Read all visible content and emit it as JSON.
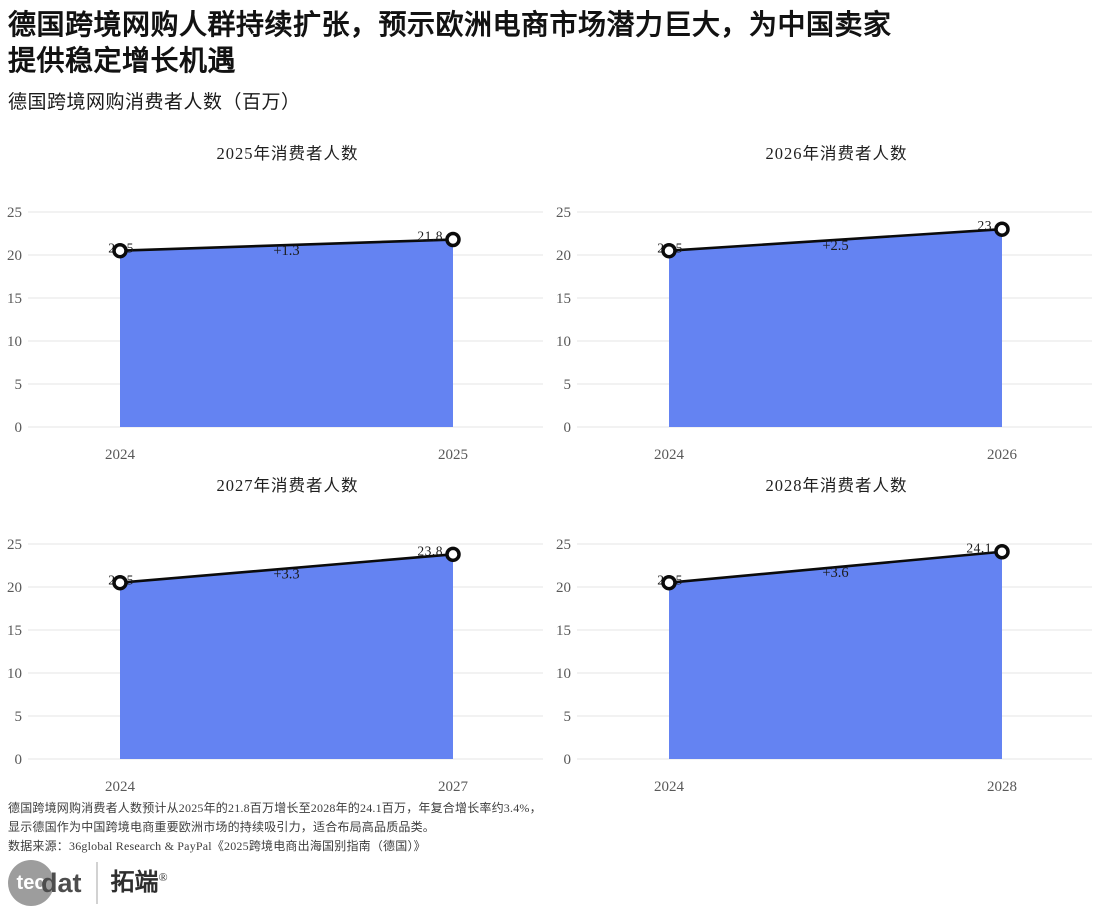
{
  "header": {
    "title_lines": [
      "德国跨境网购人群持续扩张，预示欧洲电商市场潜力巨大，为中国卖家",
      "提供稳定增长机遇"
    ],
    "subtitle": "德国跨境网购消费者人数（百万）"
  },
  "chart_data": [
    {
      "type": "area",
      "title": "2025年消费者人数",
      "categories": [
        "2024",
        "2025"
      ],
      "values": [
        20.5,
        21.8
      ],
      "point_labels": [
        "20.5",
        "21.8"
      ],
      "delta_label": "+1.3",
      "ylim": [
        0,
        25
      ],
      "yticks": [
        0,
        5,
        10,
        15,
        20,
        25
      ],
      "grid": true,
      "fill_color": "#6483F2",
      "line_color": "#0b0b0b"
    },
    {
      "type": "area",
      "title": "2026年消费者人数",
      "categories": [
        "2024",
        "2026"
      ],
      "values": [
        20.5,
        23
      ],
      "point_labels": [
        "20.5",
        "23"
      ],
      "delta_label": "+2.5",
      "ylim": [
        0,
        25
      ],
      "yticks": [
        0,
        5,
        10,
        15,
        20,
        25
      ],
      "grid": true,
      "fill_color": "#6483F2",
      "line_color": "#0b0b0b"
    },
    {
      "type": "area",
      "title": "2027年消费者人数",
      "categories": [
        "2024",
        "2027"
      ],
      "values": [
        20.5,
        23.8
      ],
      "point_labels": [
        "20.5",
        "23.8"
      ],
      "delta_label": "+3.3",
      "ylim": [
        0,
        25
      ],
      "yticks": [
        0,
        5,
        10,
        15,
        20,
        25
      ],
      "grid": true,
      "fill_color": "#6483F2",
      "line_color": "#0b0b0b"
    },
    {
      "type": "area",
      "title": "2028年消费者人数",
      "categories": [
        "2024",
        "2028"
      ],
      "values": [
        20.5,
        24.1
      ],
      "point_labels": [
        "20.5",
        "24.1"
      ],
      "delta_label": "+3.6",
      "ylim": [
        0,
        25
      ],
      "yticks": [
        0,
        5,
        10,
        15,
        20,
        25
      ],
      "grid": true,
      "fill_color": "#6483F2",
      "line_color": "#0b0b0b"
    }
  ],
  "colors": {
    "grid_line": "#ebebeb",
    "tick_text": "#595959",
    "label_text": "#1a1a1a",
    "chart_title_text": "#1f1f1f"
  },
  "footer": {
    "lines": [
      "德国跨境网购消费者人数预计从2025年的21.8百万增长至2028年的24.1百万，年复合增长率约3.4%，",
      "显示德国作为中国跨境电商重要欧洲市场的持续吸引力，适合布局高品质品类。",
      "数据来源：36global Research & PayPal《2025跨境电商出海国别指南（德国）》"
    ]
  },
  "logo": {
    "circle_text": "tec",
    "wordmark_suffix": "dat",
    "brand_cn": "拓端",
    "registered_mark": "®"
  }
}
